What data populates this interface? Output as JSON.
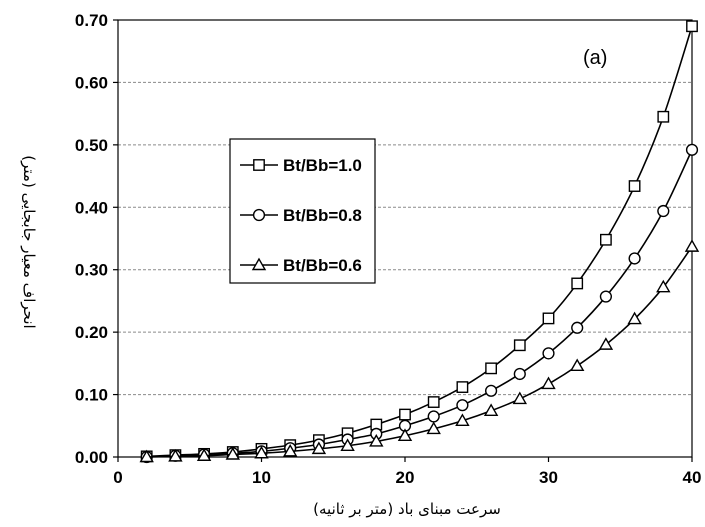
{
  "chart_data": {
    "type": "line",
    "xlabel": "سرعت مبنای باد (متر بر ثانیه)",
    "ylabel": "انحراف معیار جابجایی (متر)",
    "panel_label": "(a)",
    "xlim": [
      0,
      40
    ],
    "ylim": [
      0,
      0.7
    ],
    "x_ticks": [
      "0",
      "10",
      "20",
      "30",
      "40"
    ],
    "y_ticks": [
      "0.00",
      "0.10",
      "0.20",
      "0.30",
      "0.40",
      "0.50",
      "0.60",
      "0.70"
    ],
    "grid": "horizontal",
    "legend_position": "center-left",
    "x": [
      2,
      4,
      6,
      8,
      10,
      12,
      14,
      16,
      18,
      20,
      22,
      24,
      26,
      28,
      30,
      32,
      34,
      36,
      38,
      40
    ],
    "series": [
      {
        "name": "Bt/Bb=1.0",
        "marker": "square",
        "values": [
          0.001,
          0.003,
          0.005,
          0.008,
          0.013,
          0.019,
          0.027,
          0.038,
          0.052,
          0.068,
          0.088,
          0.112,
          0.142,
          0.179,
          0.222,
          0.278,
          0.348,
          0.434,
          0.545,
          0.69
        ]
      },
      {
        "name": "Bt/Bb=0.8",
        "marker": "circle",
        "values": [
          0.0,
          0.002,
          0.004,
          0.006,
          0.009,
          0.014,
          0.02,
          0.028,
          0.037,
          0.05,
          0.065,
          0.083,
          0.106,
          0.133,
          0.166,
          0.207,
          0.257,
          0.318,
          0.394,
          0.492
        ]
      },
      {
        "name": "Bt/Bb=0.6",
        "marker": "triangle",
        "values": [
          0.0,
          0.001,
          0.002,
          0.004,
          0.006,
          0.009,
          0.013,
          0.018,
          0.025,
          0.034,
          0.045,
          0.058,
          0.074,
          0.093,
          0.117,
          0.146,
          0.18,
          0.221,
          0.272,
          0.337
        ]
      }
    ]
  }
}
